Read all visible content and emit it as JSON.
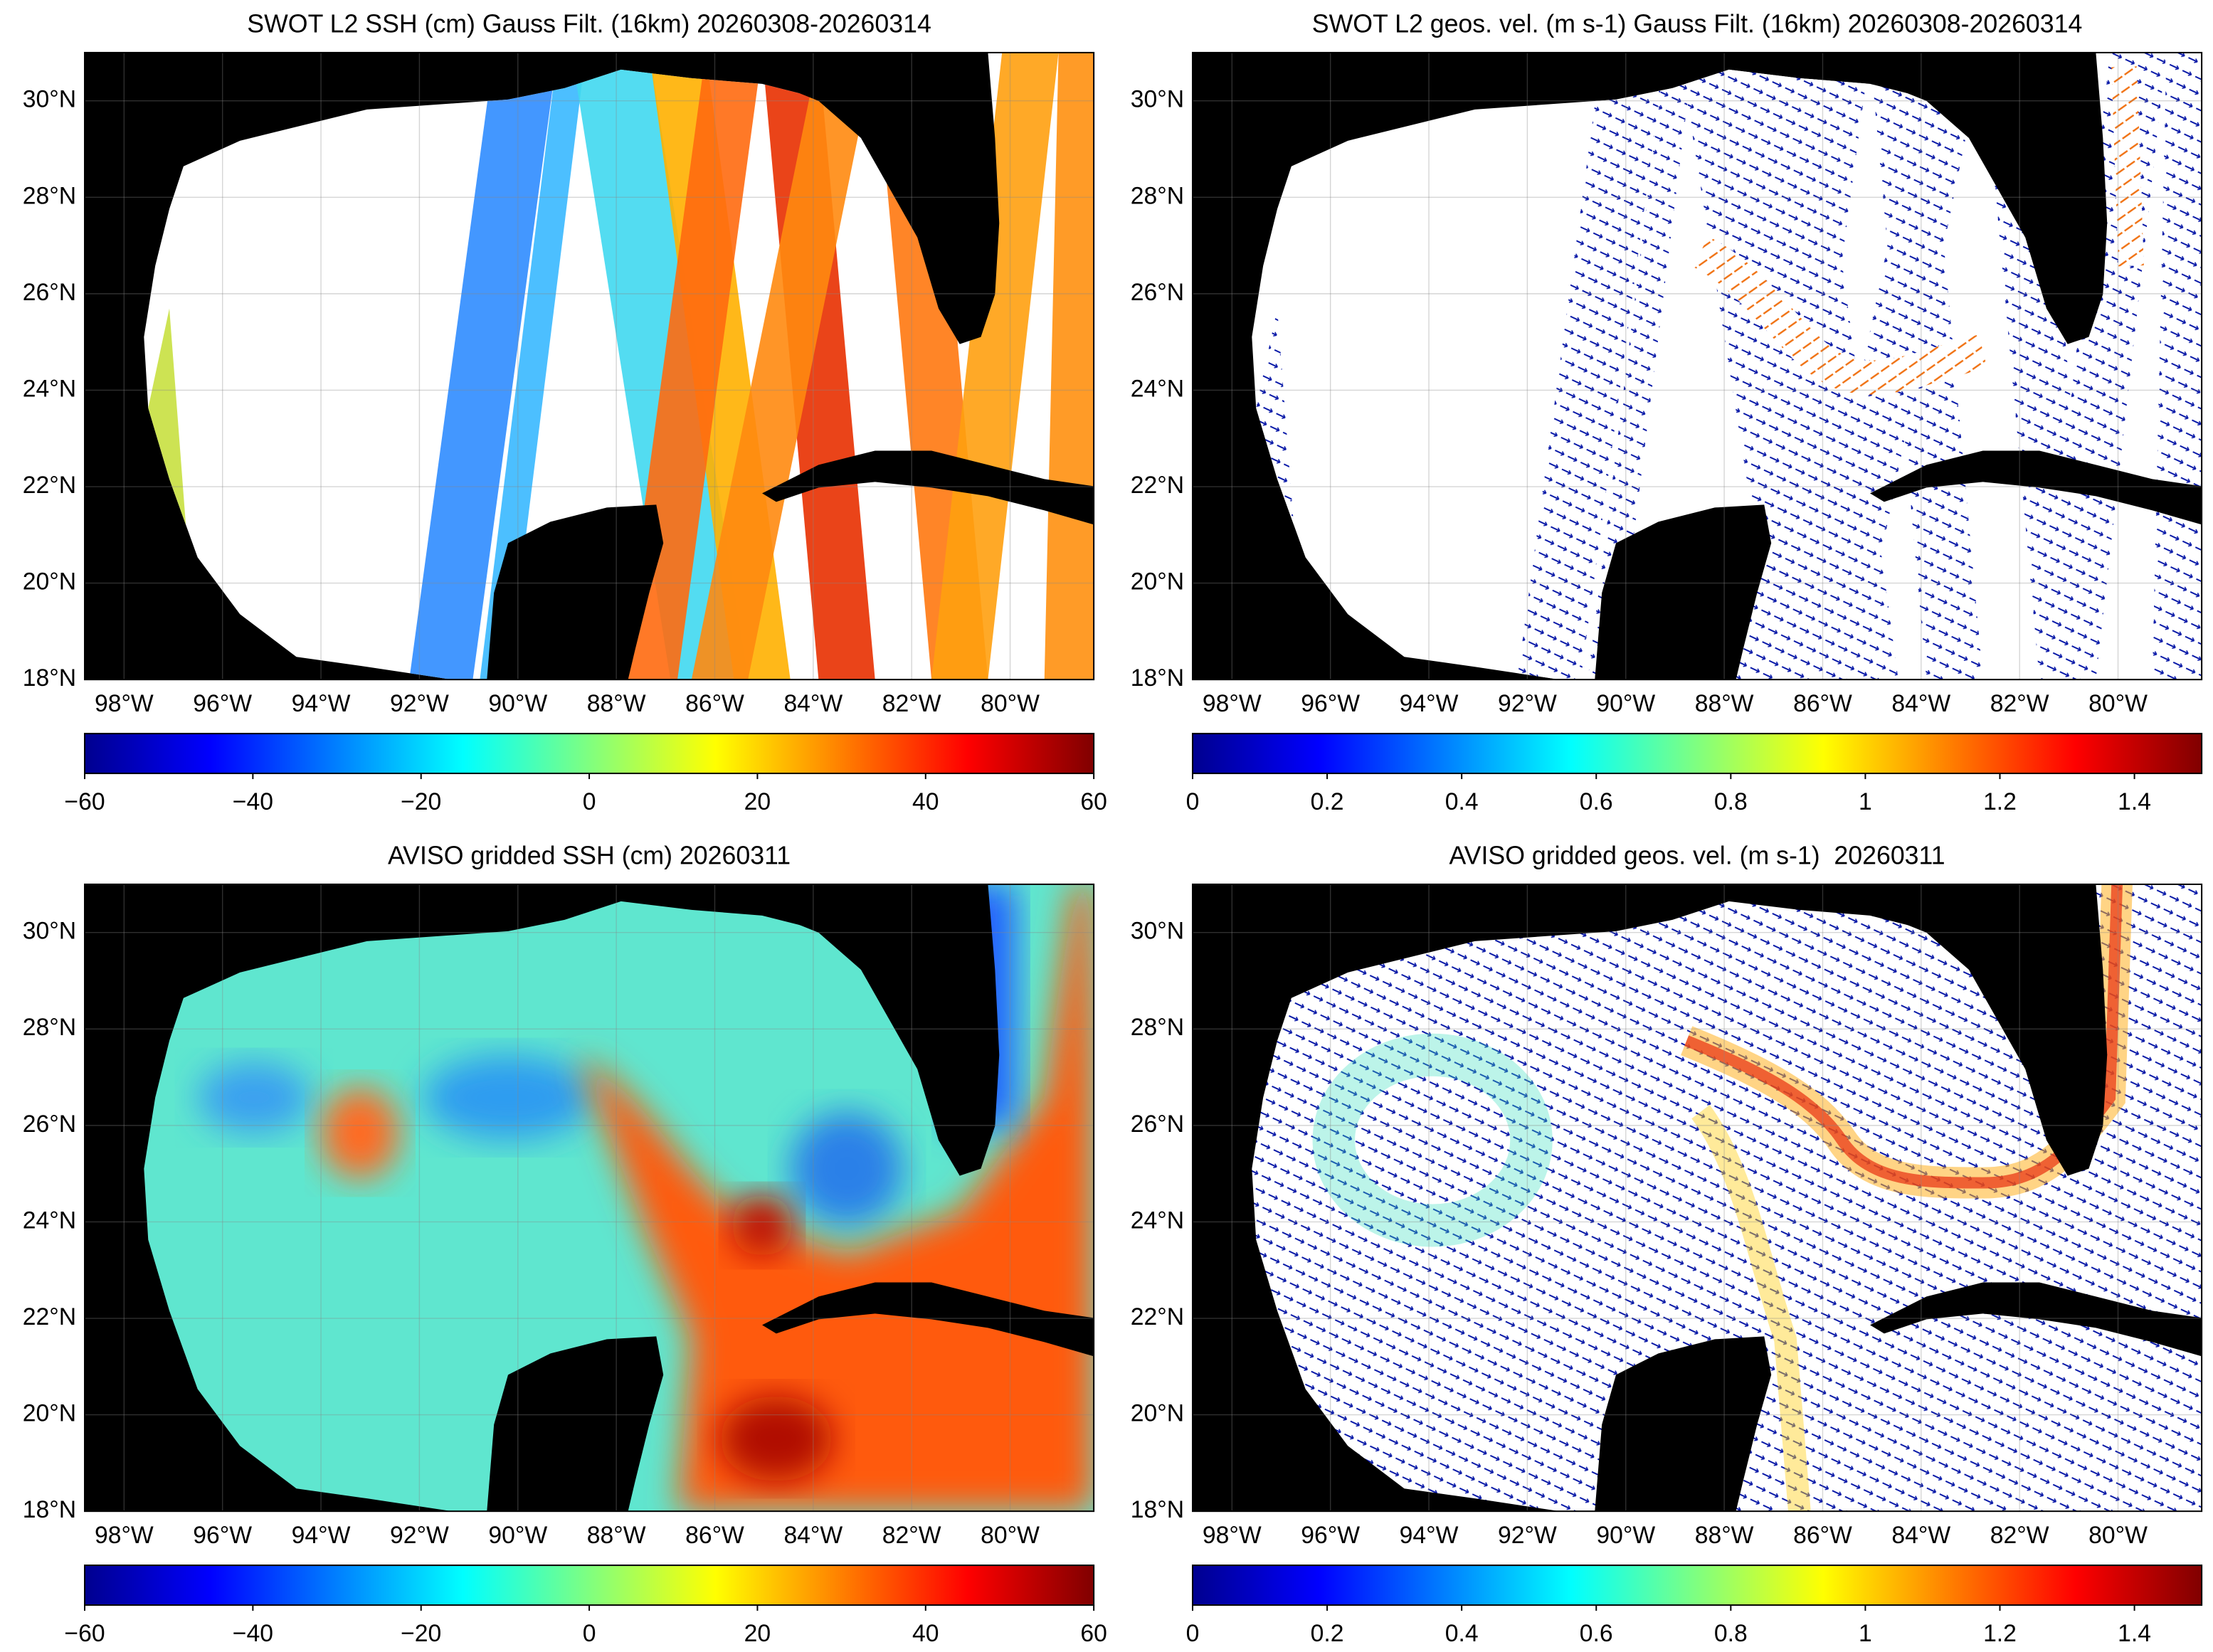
{
  "panels": [
    {
      "title": "SWOT L2 SSH (cm) Gauss Filt. (16km) 20260308-20260314",
      "xlim": [
        -98.8,
        -78.3
      ],
      "ylim": [
        18,
        31
      ],
      "xticks": [
        {
          "value": -98,
          "label": "98°W"
        },
        {
          "value": -96,
          "label": "96°W"
        },
        {
          "value": -94,
          "label": "94°W"
        },
        {
          "value": -92,
          "label": "92°W"
        },
        {
          "value": -90,
          "label": "90°W"
        },
        {
          "value": -88,
          "label": "88°W"
        },
        {
          "value": -86,
          "label": "86°W"
        },
        {
          "value": -84,
          "label": "84°W"
        },
        {
          "value": -82,
          "label": "82°W"
        },
        {
          "value": -80,
          "label": "80°W"
        }
      ],
      "yticks": [
        {
          "value": 18,
          "label": "18°N"
        },
        {
          "value": 20,
          "label": "20°N"
        },
        {
          "value": 22,
          "label": "22°N"
        },
        {
          "value": 24,
          "label": "24°N"
        },
        {
          "value": 26,
          "label": "26°N"
        },
        {
          "value": 28,
          "label": "28°N"
        },
        {
          "value": 30,
          "label": "30°N"
        }
      ],
      "colorbar": {
        "lim": [
          -60,
          60
        ],
        "ticks": [
          {
            "value": -60,
            "label": "−60"
          },
          {
            "value": -40,
            "label": "−40"
          },
          {
            "value": -20,
            "label": "−20"
          },
          0,
          20,
          40,
          60
        ]
      }
    },
    {
      "title": "SWOT L2 geos. vel. (m s-1) Gauss Filt. (16km) 20260308-20260314",
      "xlim": [
        -98.8,
        -78.3
      ],
      "ylim": [
        18,
        31
      ],
      "xticks": [
        {
          "value": -98,
          "label": "98°W"
        },
        {
          "value": -96,
          "label": "96°W"
        },
        {
          "value": -94,
          "label": "94°W"
        },
        {
          "value": -92,
          "label": "92°W"
        },
        {
          "value": -90,
          "label": "90°W"
        },
        {
          "value": -88,
          "label": "88°W"
        },
        {
          "value": -86,
          "label": "86°W"
        },
        {
          "value": -84,
          "label": "84°W"
        },
        {
          "value": -82,
          "label": "82°W"
        },
        {
          "value": -80,
          "label": "80°W"
        }
      ],
      "yticks": [
        {
          "value": 18,
          "label": "18°N"
        },
        {
          "value": 20,
          "label": "20°N"
        },
        {
          "value": 22,
          "label": "22°N"
        },
        {
          "value": 24,
          "label": "24°N"
        },
        {
          "value": 26,
          "label": "26°N"
        },
        {
          "value": 28,
          "label": "28°N"
        },
        {
          "value": 30,
          "label": "30°N"
        }
      ],
      "colorbar": {
        "lim": [
          0,
          1.5
        ],
        "ticks": [
          0,
          0.2,
          0.4,
          0.6,
          0.8,
          1,
          1.2,
          1.4
        ]
      }
    },
    {
      "title": "AVISO gridded SSH (cm) 20260311",
      "xlim": [
        -98.8,
        -78.3
      ],
      "ylim": [
        18,
        31
      ],
      "xticks": [
        {
          "value": -98,
          "label": "98°W"
        },
        {
          "value": -96,
          "label": "96°W"
        },
        {
          "value": -94,
          "label": "94°W"
        },
        {
          "value": -92,
          "label": "92°W"
        },
        {
          "value": -90,
          "label": "90°W"
        },
        {
          "value": -88,
          "label": "88°W"
        },
        {
          "value": -86,
          "label": "86°W"
        },
        {
          "value": -84,
          "label": "84°W"
        },
        {
          "value": -82,
          "label": "82°W"
        },
        {
          "value": -80,
          "label": "80°W"
        }
      ],
      "yticks": [
        {
          "value": 18,
          "label": "18°N"
        },
        {
          "value": 20,
          "label": "20°N"
        },
        {
          "value": 22,
          "label": "22°N"
        },
        {
          "value": 24,
          "label": "24°N"
        },
        {
          "value": 26,
          "label": "26°N"
        },
        {
          "value": 28,
          "label": "28°N"
        },
        {
          "value": 30,
          "label": "30°N"
        }
      ],
      "colorbar": {
        "lim": [
          -60,
          60
        ],
        "ticks": [
          {
            "value": -60,
            "label": "−60"
          },
          {
            "value": -40,
            "label": "−40"
          },
          {
            "value": -20,
            "label": "−20"
          },
          0,
          20,
          40,
          60
        ]
      }
    },
    {
      "title": "AVISO gridded geos. vel. (m s-1)  20260311",
      "xlim": [
        -98.8,
        -78.3
      ],
      "ylim": [
        18,
        31
      ],
      "xticks": [
        {
          "value": -98,
          "label": "98°W"
        },
        {
          "value": -96,
          "label": "96°W"
        },
        {
          "value": -94,
          "label": "94°W"
        },
        {
          "value": -92,
          "label": "92°W"
        },
        {
          "value": -90,
          "label": "90°W"
        },
        {
          "value": -88,
          "label": "88°W"
        },
        {
          "value": -86,
          "label": "86°W"
        },
        {
          "value": -84,
          "label": "84°W"
        },
        {
          "value": -82,
          "label": "82°W"
        },
        {
          "value": -80,
          "label": "80°W"
        }
      ],
      "yticks": [
        {
          "value": 18,
          "label": "18°N"
        },
        {
          "value": 20,
          "label": "20°N"
        },
        {
          "value": 22,
          "label": "22°N"
        },
        {
          "value": 24,
          "label": "24°N"
        },
        {
          "value": 26,
          "label": "26°N"
        },
        {
          "value": 28,
          "label": "28°N"
        },
        {
          "value": 30,
          "label": "30°N"
        }
      ],
      "colorbar": {
        "lim": [
          0,
          1.5
        ],
        "ticks": [
          0,
          0.2,
          0.4,
          0.6,
          0.8,
          1,
          1.2,
          1.4
        ]
      }
    }
  ]
}
